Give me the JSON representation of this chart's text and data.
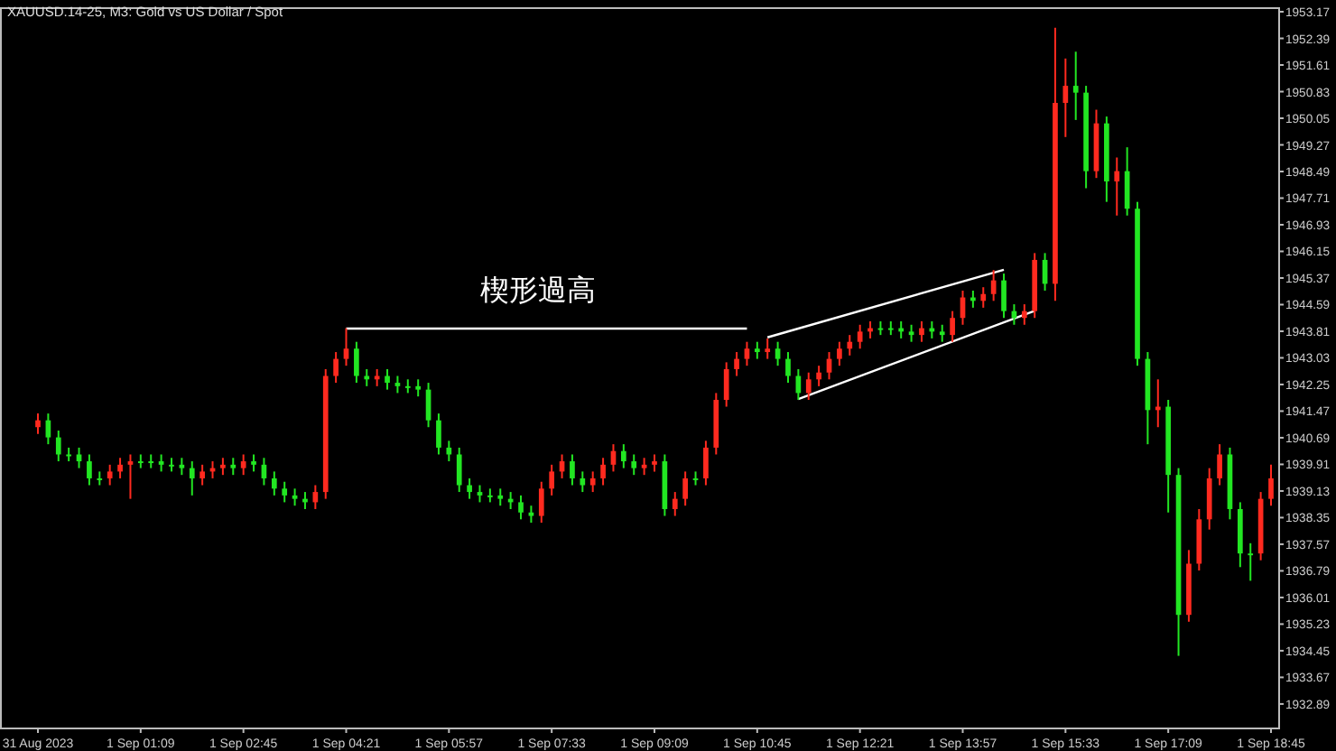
{
  "chart_data": {
    "type": "candlestick",
    "title": "XAUUSD.14-25, M3: Gold vs US Dollar / Spot",
    "categories": [
      "31 Aug 2023",
      null,
      null,
      null,
      null,
      null,
      null,
      null,
      null,
      null,
      "1 Sep 01:09",
      null,
      null,
      null,
      null,
      null,
      null,
      null,
      null,
      null,
      "1 Sep 02:45",
      null,
      null,
      null,
      null,
      null,
      null,
      null,
      null,
      null,
      "1 Sep 04:21",
      null,
      null,
      null,
      null,
      null,
      null,
      null,
      null,
      null,
      "1 Sep 05:57",
      null,
      null,
      null,
      null,
      null,
      null,
      null,
      null,
      null,
      "1 Sep 07:33",
      null,
      null,
      null,
      null,
      null,
      null,
      null,
      null,
      null,
      "1 Sep 09:09",
      null,
      null,
      null,
      null,
      null,
      null,
      null,
      null,
      null,
      "1 Sep 10:45",
      null,
      null,
      null,
      null,
      null,
      null,
      null,
      null,
      null,
      "1 Sep 12:21",
      null,
      null,
      null,
      null,
      null,
      null,
      null,
      null,
      null,
      "1 Sep 13:57",
      null,
      null,
      null,
      null,
      null,
      null,
      null,
      null,
      null,
      "1 Sep 15:33",
      null,
      null,
      null,
      null,
      null,
      null,
      null,
      null,
      null,
      "1 Sep 17:09",
      null,
      null,
      null,
      null,
      null,
      null,
      null,
      null,
      null,
      "1 Sep 18:45"
    ],
    "ohlc": [
      [
        1941.0,
        1941.4,
        1940.8,
        1941.2
      ],
      [
        1941.2,
        1941.4,
        1940.5,
        1940.7
      ],
      [
        1940.7,
        1940.9,
        1940.0,
        1940.2
      ],
      [
        1940.2,
        1940.4,
        1940.0,
        1940.2
      ],
      [
        1940.2,
        1940.4,
        1939.8,
        1940.0
      ],
      [
        1940.0,
        1940.2,
        1939.3,
        1939.5
      ],
      [
        1939.5,
        1939.7,
        1939.3,
        1939.5
      ],
      [
        1939.5,
        1939.9,
        1939.3,
        1939.7
      ],
      [
        1939.7,
        1940.1,
        1939.5,
        1939.9
      ],
      [
        1939.9,
        1940.2,
        1938.9,
        1940.0
      ],
      [
        1940.0,
        1940.2,
        1939.8,
        1940.0
      ],
      [
        1940.0,
        1940.2,
        1939.8,
        1940.0
      ],
      [
        1940.0,
        1940.2,
        1939.7,
        1939.9
      ],
      [
        1939.9,
        1940.1,
        1939.7,
        1939.9
      ],
      [
        1939.9,
        1940.1,
        1939.6,
        1939.8
      ],
      [
        1939.8,
        1940.0,
        1939.0,
        1939.5
      ],
      [
        1939.5,
        1939.9,
        1939.3,
        1939.7
      ],
      [
        1939.7,
        1940.0,
        1939.5,
        1939.8
      ],
      [
        1939.8,
        1940.1,
        1939.6,
        1939.9
      ],
      [
        1939.9,
        1940.1,
        1939.6,
        1939.8
      ],
      [
        1939.8,
        1940.2,
        1939.6,
        1940.0
      ],
      [
        1940.0,
        1940.2,
        1939.7,
        1939.9
      ],
      [
        1939.9,
        1940.1,
        1939.3,
        1939.5
      ],
      [
        1939.5,
        1939.7,
        1939.0,
        1939.2
      ],
      [
        1939.2,
        1939.4,
        1938.8,
        1939.0
      ],
      [
        1939.0,
        1939.2,
        1938.7,
        1938.9
      ],
      [
        1938.9,
        1939.1,
        1938.6,
        1938.8
      ],
      [
        1938.8,
        1939.3,
        1938.6,
        1939.1
      ],
      [
        1939.1,
        1942.7,
        1938.9,
        1942.5
      ],
      [
        1942.5,
        1943.2,
        1942.3,
        1943.0
      ],
      [
        1943.0,
        1943.9,
        1942.8,
        1943.3
      ],
      [
        1943.3,
        1943.5,
        1942.3,
        1942.5
      ],
      [
        1942.5,
        1942.7,
        1942.2,
        1942.4
      ],
      [
        1942.4,
        1942.7,
        1942.2,
        1942.5
      ],
      [
        1942.5,
        1942.7,
        1942.1,
        1942.3
      ],
      [
        1942.3,
        1942.5,
        1942.0,
        1942.2
      ],
      [
        1942.2,
        1942.4,
        1942.0,
        1942.2
      ],
      [
        1942.2,
        1942.4,
        1941.9,
        1942.1
      ],
      [
        1942.1,
        1942.3,
        1941.0,
        1941.2
      ],
      [
        1941.2,
        1941.4,
        1940.2,
        1940.4
      ],
      [
        1940.4,
        1940.6,
        1940.0,
        1940.2
      ],
      [
        1940.2,
        1940.4,
        1939.1,
        1939.3
      ],
      [
        1939.3,
        1939.5,
        1938.9,
        1939.1
      ],
      [
        1939.1,
        1939.3,
        1938.8,
        1939.0
      ],
      [
        1939.0,
        1939.2,
        1938.8,
        1939.0
      ],
      [
        1939.0,
        1939.2,
        1938.7,
        1938.9
      ],
      [
        1938.9,
        1939.1,
        1938.6,
        1938.8
      ],
      [
        1938.8,
        1939.0,
        1938.3,
        1938.5
      ],
      [
        1938.5,
        1938.7,
        1938.2,
        1938.4
      ],
      [
        1938.4,
        1939.4,
        1938.2,
        1939.2
      ],
      [
        1939.2,
        1939.9,
        1939.0,
        1939.7
      ],
      [
        1939.7,
        1940.2,
        1939.5,
        1940.0
      ],
      [
        1940.0,
        1940.2,
        1939.3,
        1939.5
      ],
      [
        1939.5,
        1939.7,
        1939.1,
        1939.3
      ],
      [
        1939.3,
        1939.7,
        1939.1,
        1939.5
      ],
      [
        1939.5,
        1940.1,
        1939.3,
        1939.9
      ],
      [
        1939.9,
        1940.5,
        1939.7,
        1940.3
      ],
      [
        1940.3,
        1940.5,
        1939.8,
        1940.0
      ],
      [
        1940.0,
        1940.2,
        1939.6,
        1939.8
      ],
      [
        1939.8,
        1940.1,
        1939.6,
        1939.9
      ],
      [
        1939.9,
        1940.2,
        1939.7,
        1940.0
      ],
      [
        1940.0,
        1940.2,
        1938.4,
        1938.6
      ],
      [
        1938.6,
        1939.1,
        1938.4,
        1938.9
      ],
      [
        1938.9,
        1939.7,
        1938.7,
        1939.5
      ],
      [
        1939.5,
        1939.7,
        1939.3,
        1939.5
      ],
      [
        1939.5,
        1940.6,
        1939.3,
        1940.4
      ],
      [
        1940.4,
        1942.0,
        1940.2,
        1941.8
      ],
      [
        1941.8,
        1942.9,
        1941.6,
        1942.7
      ],
      [
        1942.7,
        1943.2,
        1942.5,
        1943.0
      ],
      [
        1943.0,
        1943.5,
        1942.8,
        1943.3
      ],
      [
        1943.3,
        1943.5,
        1943.0,
        1943.2
      ],
      [
        1943.2,
        1943.6,
        1943.0,
        1943.3
      ],
      [
        1943.3,
        1943.5,
        1942.8,
        1943.0
      ],
      [
        1943.0,
        1943.2,
        1942.3,
        1942.5
      ],
      [
        1942.5,
        1942.7,
        1941.8,
        1942.0
      ],
      [
        1942.0,
        1942.6,
        1941.8,
        1942.4
      ],
      [
        1942.4,
        1942.8,
        1942.2,
        1942.6
      ],
      [
        1942.6,
        1943.2,
        1942.4,
        1943.0
      ],
      [
        1943.0,
        1943.5,
        1942.8,
        1943.3
      ],
      [
        1943.3,
        1943.7,
        1943.1,
        1943.5
      ],
      [
        1943.5,
        1944.0,
        1943.3,
        1943.8
      ],
      [
        1943.8,
        1944.1,
        1943.6,
        1943.9
      ],
      [
        1943.9,
        1944.1,
        1943.7,
        1943.9
      ],
      [
        1943.9,
        1944.1,
        1943.7,
        1943.9
      ],
      [
        1943.9,
        1944.1,
        1943.6,
        1943.8
      ],
      [
        1943.8,
        1944.0,
        1943.5,
        1943.7
      ],
      [
        1943.7,
        1944.1,
        1943.5,
        1943.9
      ],
      [
        1943.9,
        1944.1,
        1943.6,
        1943.8
      ],
      [
        1943.8,
        1944.0,
        1943.5,
        1943.7
      ],
      [
        1943.7,
        1944.4,
        1943.5,
        1944.2
      ],
      [
        1944.2,
        1945.0,
        1944.0,
        1944.8
      ],
      [
        1944.8,
        1945.0,
        1944.5,
        1944.7
      ],
      [
        1944.7,
        1945.1,
        1944.5,
        1944.9
      ],
      [
        1944.9,
        1945.6,
        1944.7,
        1945.3
      ],
      [
        1945.3,
        1945.5,
        1944.2,
        1944.4
      ],
      [
        1944.4,
        1944.6,
        1944.0,
        1944.2
      ],
      [
        1944.2,
        1944.6,
        1944.0,
        1944.4
      ],
      [
        1944.4,
        1946.1,
        1944.2,
        1945.9
      ],
      [
        1945.9,
        1946.1,
        1945.0,
        1945.2
      ],
      [
        1945.2,
        1952.7,
        1944.7,
        1950.5
      ],
      [
        1950.5,
        1951.8,
        1949.5,
        1951.0
      ],
      [
        1951.0,
        1952.0,
        1950.0,
        1950.8
      ],
      [
        1950.8,
        1951.0,
        1948.0,
        1948.5
      ],
      [
        1948.5,
        1950.3,
        1948.3,
        1949.9
      ],
      [
        1949.9,
        1950.1,
        1947.6,
        1948.2
      ],
      [
        1948.2,
        1948.9,
        1947.2,
        1948.5
      ],
      [
        1948.5,
        1949.2,
        1947.2,
        1947.4
      ],
      [
        1947.4,
        1947.6,
        1942.8,
        1943.0
      ],
      [
        1943.0,
        1943.2,
        1940.5,
        1941.5
      ],
      [
        1941.5,
        1942.4,
        1941.0,
        1941.6
      ],
      [
        1941.6,
        1941.8,
        1938.5,
        1939.6
      ],
      [
        1939.6,
        1939.8,
        1934.3,
        1935.5
      ],
      [
        1935.5,
        1937.4,
        1935.3,
        1937.0
      ],
      [
        1937.0,
        1938.6,
        1936.8,
        1938.3
      ],
      [
        1938.3,
        1939.8,
        1938.0,
        1939.5
      ],
      [
        1939.5,
        1940.5,
        1939.3,
        1940.2
      ],
      [
        1940.2,
        1940.4,
        1938.3,
        1938.6
      ],
      [
        1938.6,
        1938.8,
        1936.9,
        1937.3
      ],
      [
        1937.3,
        1937.6,
        1936.5,
        1937.3
      ],
      [
        1937.3,
        1939.1,
        1937.1,
        1938.9
      ],
      [
        1938.9,
        1939.9,
        1938.7,
        1939.5
      ]
    ],
    "colors": [
      "#ff2a1f",
      "#22e622",
      "#22e622",
      "#22e622",
      "#22e622",
      "#22e622",
      "#22e622",
      "#ff2a1f",
      "#ff2a1f",
      "#ff2a1f",
      "#22e622",
      "#22e622",
      "#22e622",
      "#22e622",
      "#22e622",
      "#22e622",
      "#ff2a1f",
      "#ff2a1f",
      "#ff2a1f",
      "#22e622",
      "#ff2a1f",
      "#22e622",
      "#22e622",
      "#22e622",
      "#22e622",
      "#22e622",
      "#22e622",
      "#ff2a1f",
      "#ff2a1f",
      "#ff2a1f",
      "#ff2a1f",
      "#22e622",
      "#22e622",
      "#ff2a1f",
      "#22e622",
      "#22e622",
      "#22e622",
      "#22e622",
      "#22e622",
      "#22e622",
      "#22e622",
      "#22e622",
      "#22e622",
      "#22e622",
      "#22e622",
      "#22e622",
      "#22e622",
      "#22e622",
      "#22e622",
      "#ff2a1f",
      "#ff2a1f",
      "#ff2a1f",
      "#22e622",
      "#22e622",
      "#ff2a1f",
      "#ff2a1f",
      "#ff2a1f",
      "#22e622",
      "#22e622",
      "#ff2a1f",
      "#ff2a1f",
      "#22e622",
      "#ff2a1f",
      "#ff2a1f",
      "#22e622",
      "#ff2a1f",
      "#ff2a1f",
      "#ff2a1f",
      "#ff2a1f",
      "#ff2a1f",
      "#22e622",
      "#ff2a1f",
      "#22e622",
      "#22e622",
      "#22e622",
      "#ff2a1f",
      "#ff2a1f",
      "#ff2a1f",
      "#ff2a1f",
      "#ff2a1f",
      "#ff2a1f",
      "#ff2a1f",
      "#22e622",
      "#22e622",
      "#22e622",
      "#22e622",
      "#ff2a1f",
      "#22e622",
      "#22e622",
      "#ff2a1f",
      "#ff2a1f",
      "#22e622",
      "#ff2a1f",
      "#ff2a1f",
      "#22e622",
      "#22e622",
      "#ff2a1f",
      "#ff2a1f",
      "#22e622",
      "#ff2a1f",
      "#ff2a1f",
      "#22e622",
      "#22e622",
      "#ff2a1f",
      "#22e622",
      "#ff2a1f",
      "#22e622",
      "#22e622",
      "#22e622",
      "#ff2a1f",
      "#22e622",
      "#22e622",
      "#ff2a1f",
      "#ff2a1f",
      "#ff2a1f",
      "#ff2a1f",
      "#22e622",
      "#22e622",
      "#22e622",
      "#ff2a1f",
      "#ff2a1f"
    ],
    "series": [
      {
        "type": "line",
        "color": "#ffffff",
        "values": [
          null,
          null,
          null,
          null,
          null,
          null,
          null,
          null,
          null,
          null,
          null,
          null,
          null,
          null,
          null,
          null,
          null,
          null,
          null,
          null,
          null,
          null,
          null,
          null,
          null,
          null,
          null,
          null,
          null,
          null,
          1943.89,
          null,
          null,
          null,
          null,
          null,
          null,
          null,
          null,
          null,
          null,
          null,
          null,
          null,
          null,
          null,
          null,
          null,
          null,
          null,
          null,
          null,
          null,
          null,
          null,
          null,
          null,
          null,
          null,
          null,
          null,
          null,
          null,
          null,
          null,
          null,
          null,
          null,
          null,
          1943.89,
          null,
          null,
          null,
          null,
          null,
          null,
          null,
          null,
          null,
          null,
          null,
          null,
          null,
          null,
          null,
          null,
          null,
          null,
          null,
          null,
          null,
          null,
          null,
          null,
          null,
          null,
          null,
          null,
          null,
          null,
          null,
          null,
          null,
          null,
          null,
          null,
          null,
          null,
          null,
          null,
          null,
          null,
          null,
          null,
          null,
          null,
          null,
          null,
          null,
          null,
          null
        ]
      },
      {
        "type": "line",
        "color": "#ffffff",
        "values": [
          null,
          null,
          null,
          null,
          null,
          null,
          null,
          null,
          null,
          null,
          null,
          null,
          null,
          null,
          null,
          null,
          null,
          null,
          null,
          null,
          null,
          null,
          null,
          null,
          null,
          null,
          null,
          null,
          null,
          null,
          null,
          null,
          null,
          null,
          null,
          null,
          null,
          null,
          null,
          null,
          null,
          null,
          null,
          null,
          null,
          null,
          null,
          null,
          null,
          null,
          null,
          null,
          null,
          null,
          null,
          null,
          null,
          null,
          null,
          null,
          null,
          null,
          null,
          null,
          null,
          null,
          null,
          null,
          null,
          null,
          null,
          1943.63,
          null,
          null,
          null,
          null,
          null,
          null,
          null,
          null,
          null,
          null,
          null,
          null,
          null,
          null,
          null,
          null,
          null,
          null,
          null,
          null,
          null,
          null,
          1945.61,
          null,
          null,
          null,
          null,
          null,
          null,
          null,
          null,
          null,
          null,
          null,
          null,
          null,
          null,
          null,
          null,
          null,
          null,
          null,
          null,
          null,
          null,
          null,
          null,
          null,
          null
        ]
      },
      {
        "type": "line",
        "color": "#ffffff",
        "values": [
          null,
          null,
          null,
          null,
          null,
          null,
          null,
          null,
          null,
          null,
          null,
          null,
          null,
          null,
          null,
          null,
          null,
          null,
          null,
          null,
          null,
          null,
          null,
          null,
          null,
          null,
          null,
          null,
          null,
          null,
          null,
          null,
          null,
          null,
          null,
          null,
          null,
          null,
          null,
          null,
          null,
          null,
          null,
          null,
          null,
          null,
          null,
          null,
          null,
          null,
          null,
          null,
          null,
          null,
          null,
          null,
          null,
          null,
          null,
          null,
          null,
          null,
          null,
          null,
          null,
          null,
          null,
          null,
          null,
          null,
          null,
          null,
          null,
          null,
          1941.82,
          null,
          null,
          null,
          null,
          null,
          null,
          null,
          null,
          null,
          null,
          null,
          null,
          null,
          null,
          null,
          null,
          null,
          null,
          null,
          null,
          null,
          null,
          1944.41,
          null,
          null,
          null,
          null,
          null,
          null,
          null,
          null,
          null,
          null,
          null,
          null,
          null,
          null,
          null,
          null,
          null,
          null,
          null,
          null,
          null,
          null,
          null
        ]
      }
    ],
    "annotations": [
      "楔形過高"
    ],
    "ylim": [
      1932.2,
      1953.25
    ],
    "yticks": [
      1932.89,
      1933.67,
      1934.45,
      1935.23,
      1936.01,
      1936.79,
      1937.57,
      1938.35,
      1939.13,
      1939.91,
      1940.69,
      1941.47,
      1942.25,
      1943.03,
      1943.81,
      1944.59,
      1945.37,
      1946.15,
      1946.93,
      1947.71,
      1948.49,
      1949.27,
      1950.05,
      1950.83,
      1951.61,
      1952.39,
      1953.17
    ]
  }
}
